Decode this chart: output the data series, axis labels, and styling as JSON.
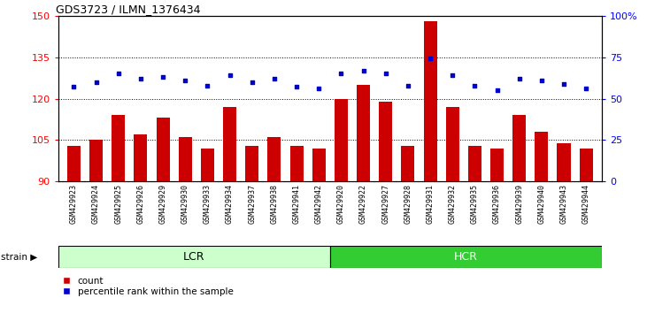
{
  "title": "GDS3723 / ILMN_1376434",
  "categories": [
    "GSM429923",
    "GSM429924",
    "GSM429925",
    "GSM429926",
    "GSM429929",
    "GSM429930",
    "GSM429933",
    "GSM429934",
    "GSM429937",
    "GSM429938",
    "GSM429941",
    "GSM429942",
    "GSM429920",
    "GSM429922",
    "GSM429927",
    "GSM429928",
    "GSM429931",
    "GSM429932",
    "GSM429935",
    "GSM429936",
    "GSM429939",
    "GSM429940",
    "GSM429943",
    "GSM429944"
  ],
  "bar_values": [
    103,
    105,
    114,
    107,
    113,
    106,
    102,
    117,
    103,
    106,
    103,
    102,
    120,
    125,
    119,
    103,
    148,
    117,
    103,
    102,
    114,
    108,
    104,
    102
  ],
  "dot_values": [
    57,
    60,
    65,
    62,
    63,
    61,
    58,
    64,
    60,
    62,
    57,
    56,
    65,
    67,
    65,
    58,
    74,
    64,
    58,
    55,
    62,
    61,
    59,
    56
  ],
  "groups": [
    {
      "label": "LCR",
      "start": 0,
      "end": 11,
      "color": "#ccffcc"
    },
    {
      "label": "HCR",
      "start": 12,
      "end": 23,
      "color": "#33cc33"
    }
  ],
  "bar_color": "#cc0000",
  "dot_color": "#0000cc",
  "ylim_left": [
    90,
    150
  ],
  "ylim_right": [
    0,
    100
  ],
  "yticks_left": [
    90,
    105,
    120,
    135,
    150
  ],
  "yticks_right": [
    0,
    25,
    50,
    75,
    100
  ],
  "ytick_right_labels": [
    "0",
    "25",
    "50",
    "75",
    "100%"
  ],
  "grid_values": [
    105,
    120,
    135
  ],
  "bar_bottom": 90,
  "n_lcr": 12,
  "n_hcr": 12,
  "fig_width": 7.31,
  "fig_height": 3.54,
  "dpi": 100
}
